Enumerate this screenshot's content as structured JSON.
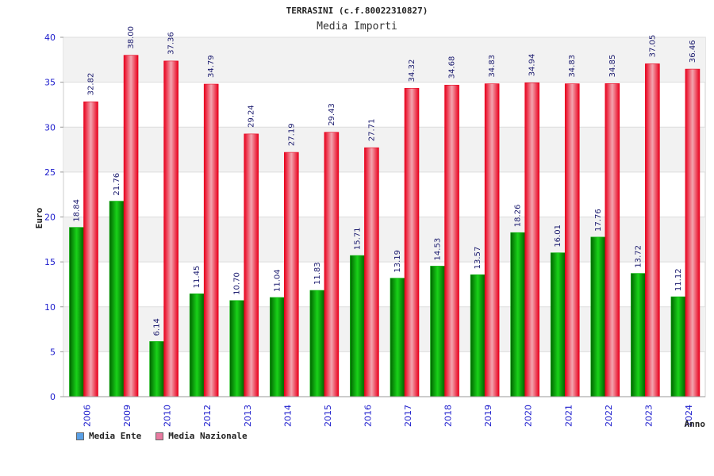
{
  "header": {
    "title": "TERRASINI (c.f.80022310827)",
    "subtitle": "Media Importi"
  },
  "legend": {
    "items": [
      {
        "label": "Media Ente",
        "color": "#5aa0e6"
      },
      {
        "label": "Media Nazionale",
        "color": "#e87aa0"
      }
    ]
  },
  "chart_data": {
    "type": "bar",
    "title": "TERRASINI (c.f.80022310827)",
    "subtitle": "Media Importi",
    "xlabel": "Anno",
    "ylabel": "Euro",
    "ylim": [
      0,
      40
    ],
    "yticks": [
      0,
      5,
      10,
      15,
      20,
      25,
      30,
      35,
      40
    ],
    "grid": true,
    "legend_position": "bottom-left",
    "categories": [
      "2006",
      "2009",
      "2010",
      "2012",
      "2013",
      "2014",
      "2015",
      "2016",
      "2017",
      "2018",
      "2019",
      "2020",
      "2021",
      "2022",
      "2023",
      "2024"
    ],
    "series": [
      {
        "name": "Media Ente",
        "bar_color": "#00b000",
        "values": [
          18.84,
          21.76,
          6.14,
          11.45,
          10.7,
          11.04,
          11.83,
          15.71,
          13.19,
          14.53,
          13.57,
          18.26,
          16.01,
          17.76,
          13.72,
          11.12
        ],
        "labels": [
          "18.84",
          "21.76",
          "6.14",
          "11.45",
          "10.70",
          "11.04",
          "11.83",
          "15.71",
          "13.19",
          "14.53",
          "13.57",
          "18.26",
          "16.01",
          "17.76",
          "13.72",
          "11.12"
        ]
      },
      {
        "name": "Media Nazionale",
        "bar_color": "#e8001c",
        "values": [
          32.82,
          38.0,
          37.36,
          34.79,
          29.24,
          27.19,
          29.43,
          27.71,
          34.32,
          34.68,
          34.83,
          34.94,
          34.83,
          34.85,
          37.05,
          36.46
        ],
        "labels": [
          "32.82",
          "38.00",
          "37.36",
          "34.79",
          "29.24",
          "27.19",
          "29.43",
          "27.71",
          "34.32",
          "34.68",
          "34.83",
          "34.94",
          "34.83",
          "34.85",
          "37.05",
          "36.46"
        ]
      }
    ]
  }
}
